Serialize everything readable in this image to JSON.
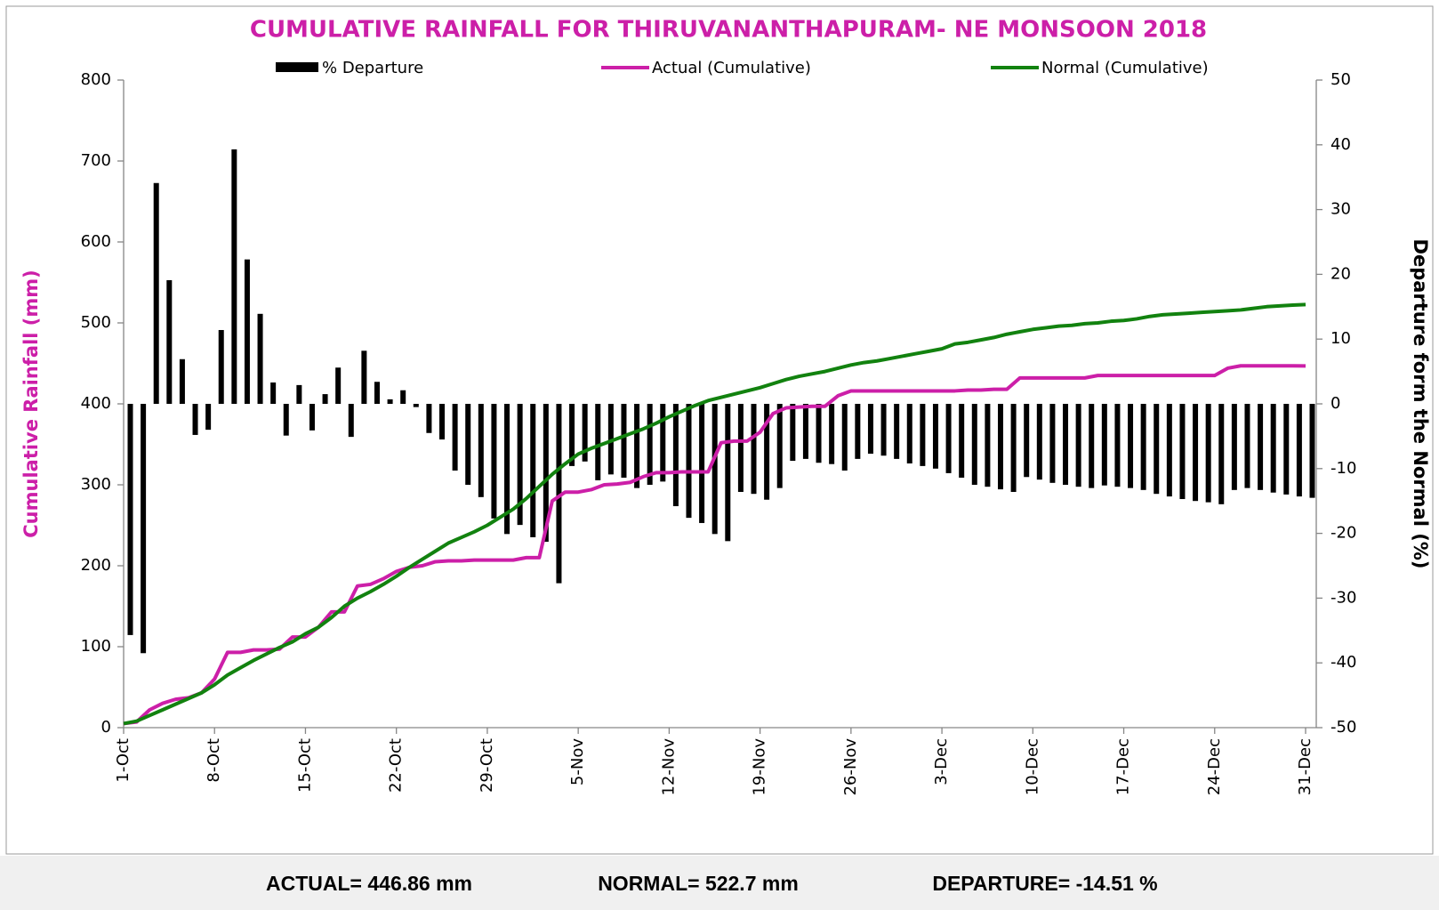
{
  "chart_data": {
    "type": "bar_line",
    "title": "CUMULATIVE RAINFALL FOR THIRUVANANTHAPURAM- NE MONSOON 2018",
    "ylabel": "Cumulative Rainfall (mm)",
    "y2label": "Departure form the Normal (%)",
    "categories": [
      "1-Oct",
      null,
      null,
      null,
      null,
      null,
      null,
      "8-Oct",
      null,
      null,
      null,
      null,
      null,
      null,
      "15-Oct",
      null,
      null,
      null,
      null,
      null,
      null,
      "22-Oct",
      null,
      null,
      null,
      null,
      null,
      null,
      "29-Oct",
      null,
      null,
      null,
      null,
      null,
      null,
      "5-Nov",
      null,
      null,
      null,
      null,
      null,
      null,
      "12-Nov",
      null,
      null,
      null,
      null,
      null,
      null,
      "19-Nov",
      null,
      null,
      null,
      null,
      null,
      null,
      "26-Nov",
      null,
      null,
      null,
      null,
      null,
      null,
      "3-Dec",
      null,
      null,
      null,
      null,
      null,
      null,
      "10-Dec",
      null,
      null,
      null,
      null,
      null,
      null,
      "17-Dec",
      null,
      null,
      null,
      null,
      null,
      null,
      "24-Dec",
      null,
      null,
      null,
      null,
      null,
      null,
      "31-Dec"
    ],
    "series": [
      {
        "name": "% Departure",
        "type": "bar",
        "axis": "y2",
        "color": "#000000",
        "values": [
          -35.7,
          -38.5,
          34.1,
          19.1,
          6.9,
          -4.8,
          -4.0,
          11.4,
          39.3,
          22.3,
          13.9,
          3.3,
          -4.9,
          2.9,
          -4.1,
          1.5,
          5.6,
          -5.1,
          8.2,
          3.4,
          0.7,
          2.1,
          -0.5,
          -4.5,
          -5.5,
          -10.3,
          -12.5,
          -14.4,
          -17.7,
          -20.1,
          -18.7,
          -20.6,
          -21.3,
          -27.7,
          -9.6,
          -8.9,
          -11.8,
          -10.9,
          -11.4,
          -13.0,
          -12.5,
          -12.0,
          -15.8,
          -17.6,
          -18.4,
          -20.1,
          -21.2,
          -13.6,
          -13.9,
          -14.8,
          -13.0,
          -8.8,
          -8.5,
          -9.1,
          -9.3,
          -10.3,
          -8.5,
          -7.7,
          -8.0,
          -8.5,
          -9.2,
          -9.6,
          -10.0,
          -10.7,
          -11.4,
          -12.5,
          -12.8,
          -13.2,
          -13.6,
          -11.3,
          -11.7,
          -12.2,
          -12.5,
          -12.8,
          -13.0,
          -12.6,
          -12.8,
          -13.0,
          -13.3,
          -13.9,
          -14.3,
          -14.7,
          -15.0,
          -15.2,
          -15.5,
          -13.3,
          -13.0,
          -13.3,
          -13.7,
          -14.0,
          -14.3,
          -14.51
        ]
      },
      {
        "name": "Actual (Cumulative)",
        "type": "line",
        "color": "#cc1fa8",
        "values": [
          5,
          7,
          22,
          30,
          35,
          37,
          43,
          60,
          93,
          93,
          96,
          96,
          97,
          112,
          112,
          124,
          143,
          143,
          175,
          177,
          184,
          193,
          198,
          200,
          205,
          206,
          206,
          207,
          207,
          207,
          207,
          210,
          210,
          280,
          291,
          291,
          294,
          300,
          301,
          303,
          310,
          315,
          315,
          316,
          316,
          316,
          352,
          354,
          354,
          365,
          388,
          395,
          396,
          397,
          397,
          410,
          416,
          416,
          416,
          416,
          416,
          416,
          416,
          416,
          416,
          417,
          417,
          418,
          418,
          432,
          432,
          432,
          432,
          432,
          432,
          435,
          435,
          435,
          435,
          435,
          435,
          435,
          435,
          435,
          435,
          444,
          447,
          447,
          447,
          447,
          447,
          446.86
        ]
      },
      {
        "name": "Normal (Cumulative)",
        "type": "line",
        "color": "#12820f",
        "values": [
          5,
          8,
          15,
          22,
          29,
          36,
          43,
          53,
          65,
          74,
          83,
          91,
          99,
          106,
          116,
          124,
          136,
          150,
          160,
          168,
          177,
          187,
          198,
          208,
          218,
          228,
          235,
          242,
          250,
          260,
          270,
          283,
          298,
          313,
          326,
          338,
          345,
          351,
          357,
          363,
          369,
          376,
          384,
          391,
          398,
          404,
          408,
          412,
          416,
          420,
          425,
          430,
          434,
          437,
          440,
          444,
          448,
          451,
          453,
          456,
          459,
          462,
          465,
          468,
          474,
          476,
          479,
          482,
          486,
          489,
          492,
          494,
          496,
          497,
          499,
          500,
          502,
          503,
          505,
          508,
          510,
          511,
          512,
          513,
          514,
          515,
          516,
          518,
          520,
          521,
          522,
          522.7
        ]
      }
    ],
    "ylim": [
      0,
      800
    ],
    "yticks": [
      0,
      100,
      200,
      300,
      400,
      500,
      600,
      700,
      800
    ],
    "y2lim": [
      -50,
      50
    ],
    "y2ticks": [
      -50,
      -40,
      -30,
      -20,
      -10,
      0,
      10,
      20,
      30,
      40,
      50
    ],
    "legend": "top",
    "annotations": [
      "ACTUAL= 446.86 mm",
      "NORMAL= 522.7 mm",
      "DEPARTURE= -14.51 %"
    ]
  }
}
